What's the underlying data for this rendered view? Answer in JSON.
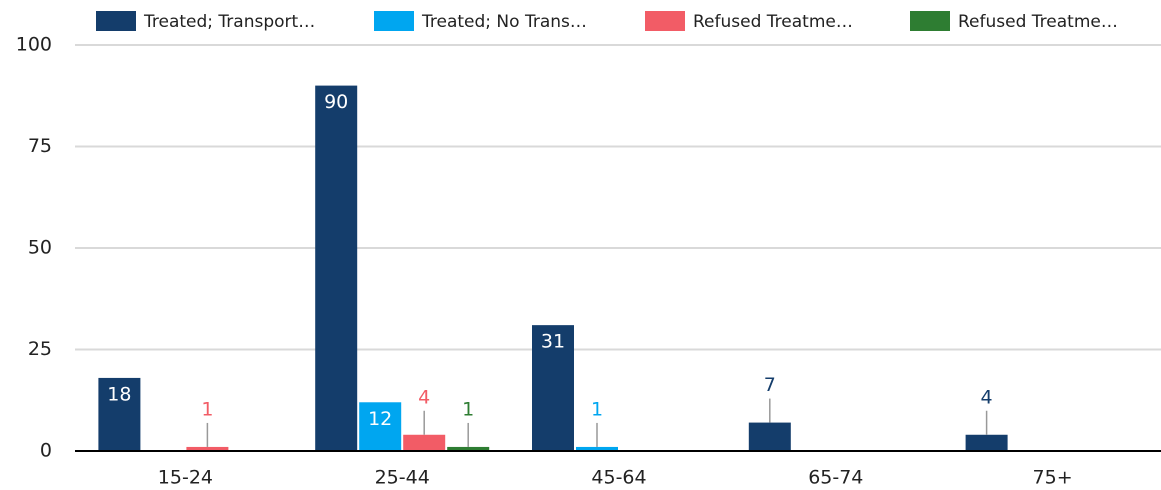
{
  "chart_data": {
    "type": "bar",
    "categories": [
      "15-24",
      "25-44",
      "45-64",
      "65-74",
      "75+"
    ],
    "series": [
      {
        "name": "Treated; Transport…",
        "color": "#143d6b",
        "values": [
          18,
          90,
          31,
          7,
          4
        ]
      },
      {
        "name": "Treated; No Trans…",
        "color": "#00a6f0",
        "values": [
          0,
          12,
          1,
          0,
          0
        ]
      },
      {
        "name": "Refused Treatme…",
        "color": "#f25c66",
        "values": [
          1,
          4,
          0,
          0,
          0
        ]
      },
      {
        "name": "Refused Treatme…",
        "color": "#2e7d32",
        "values": [
          0,
          1,
          0,
          0,
          0
        ]
      }
    ],
    "ylim": [
      0,
      100
    ],
    "yticks": [
      0,
      25,
      50,
      75,
      100
    ],
    "grid": true,
    "legend": "top"
  }
}
